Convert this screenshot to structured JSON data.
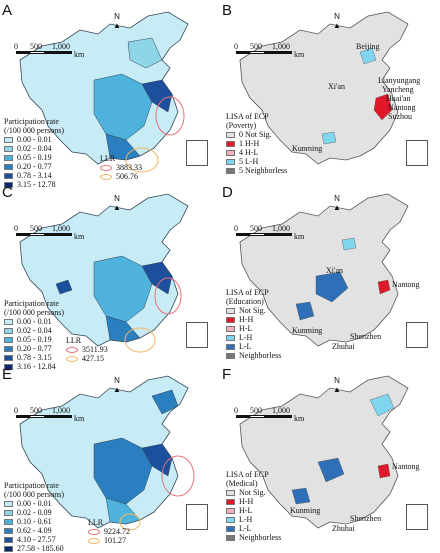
{
  "north_label": "N",
  "scale": {
    "zero": "0",
    "mid": "500",
    "end": "1,000",
    "unit": "km"
  },
  "colors": {
    "pr1": "#c8ecf5",
    "pr2": "#8fd5e8",
    "pr3": "#4fb2dc",
    "pr4": "#2a7fc0",
    "pr5": "#1c4f9c",
    "pr6": "#0d2870",
    "notsig": "#e2e2e2",
    "hh": "#e0182a",
    "hl": "#f3b0b8",
    "lh": "#7fd6ee",
    "ll": "#2f6fb8",
    "neighborless": "#777777",
    "llr_large": "#e8707a",
    "llr_small": "#f0b860"
  },
  "panels": [
    {
      "id": "A",
      "legend_title": "Participation rate",
      "legend_sub": "(/100 000 persons)",
      "items": [
        "0.00 - 0.01",
        "0.02 - 0.04",
        "0.05 - 0.19",
        "0.20 - 0.77",
        "0.78 - 3.14",
        "3.15 - 12.78"
      ],
      "llr_title": "LLR",
      "llr_values": [
        "3883.33",
        "506.76"
      ]
    },
    {
      "id": "B",
      "legend_title": "LISA of ECP",
      "legend_sub": "(Poverty)",
      "items": [
        "0 Not Sig.",
        "1 H-H",
        "4 H-L",
        "5 L-H",
        "5 Neighborless"
      ],
      "cities": [
        "Beijing",
        "Lianyungang",
        "Yancheng",
        "Huai'an",
        "Nantong",
        "Suzhou",
        "Xi'an",
        "Kunming"
      ]
    },
    {
      "id": "C",
      "legend_title": "Participation rate",
      "legend_sub": "(/100 000 persons)",
      "items": [
        "0.00 - 0.01",
        "0.02 - 0.04",
        "0.05 - 0.19",
        "0.20 - 0.77",
        "0.78 - 3.15",
        "3.16 - 12.84"
      ],
      "llr_title": "LLR",
      "llr_values": [
        "3511.93",
        "427.15"
      ]
    },
    {
      "id": "D",
      "legend_title": "LISA of ECP",
      "legend_sub": "(Education)",
      "items": [
        "Not Sig.",
        "H-H",
        "H-L",
        "L-H",
        "L-L",
        "Neighborless"
      ],
      "cities": [
        "Nantong",
        "Xi'an",
        "Kunming",
        "Shenzhen",
        "Zhuhai"
      ]
    },
    {
      "id": "E",
      "legend_title": "Participation rate",
      "legend_sub": "(/100 000 persons)",
      "items": [
        "0.00 - 0.01",
        "0.02 - 0.09",
        "0.10 - 0.61",
        "0.62 - 4.09",
        "4.10 - 27.57",
        "27.58 - 185.60"
      ],
      "llr_title": "LLR",
      "llr_values": [
        "9224.72",
        "101.27"
      ]
    },
    {
      "id": "F",
      "legend_title": "LISA of ECP",
      "legend_sub": "(Medical)",
      "items": [
        "Not Sig.",
        "H-H",
        "H-L",
        "L-H",
        "L-L",
        "Neighborless"
      ],
      "cities": [
        "Nantong",
        "Kunming",
        "Shenzhen",
        "Zhuhai"
      ]
    }
  ]
}
